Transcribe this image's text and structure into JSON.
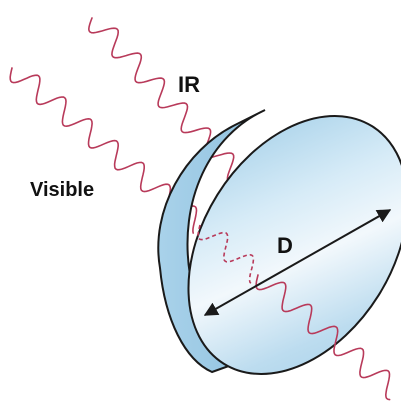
{
  "labels": {
    "ir": "IR",
    "visible": "Visible",
    "diameter": "D"
  },
  "colors": {
    "wave": "#b83a5a",
    "window_face_light": "#eaf4fb",
    "window_face_mid": "#c4e0f1",
    "window_face_dark": "#9ccbe6",
    "window_edge": "#86b8d8",
    "outline": "#1a1a1a",
    "arrow": "#1a1a1a",
    "text": "#111111"
  },
  "icons": {
    "arrow": "double-headed-arrow-icon"
  }
}
